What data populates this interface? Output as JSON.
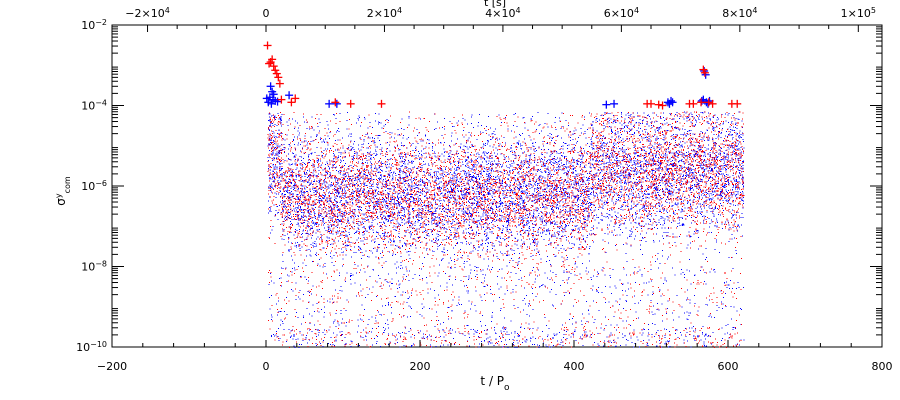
{
  "chart_data": {
    "type": "scatter",
    "title": "",
    "xlabel": "t / P",
    "xlabel_subscript": "o",
    "ylabel": "σ",
    "ylabel_superscript": "y",
    "ylabel_subscript": "com",
    "top_xlabel": "t [s]",
    "xlim": [
      -200,
      800
    ],
    "ylim": [
      1e-10,
      0.01
    ],
    "log_y": true,
    "grid": false,
    "legend": "none",
    "x_ticks": [
      -200,
      0,
      200,
      400,
      600,
      800
    ],
    "x_tick_labels": [
      "−200",
      "0",
      "200",
      "400",
      "600",
      "800"
    ],
    "y_ticks": [
      1e-10,
      1e-08,
      1e-06,
      0.0001,
      0.01
    ],
    "y_tick_labels": [
      "10−10",
      "10−8",
      "10−6",
      "10−4",
      "10−2"
    ],
    "top_x_ticks": [
      -20000,
      0,
      20000,
      40000,
      60000,
      80000,
      100000
    ],
    "top_x_tick_labels": [
      "−2×104",
      "0",
      "2×104",
      "4×104",
      "6×104",
      "8×104",
      "1×105"
    ],
    "series": [
      {
        "color": "#0000ff",
        "marker": "dot",
        "x_range": [
          0,
          620
        ],
        "y_range": [
          1e-10,
          0.0001
        ]
      },
      {
        "color": "#ff0000",
        "marker": "dot",
        "x_range": [
          0,
          620
        ],
        "y_range": [
          1e-10,
          0.0001
        ]
      },
      {
        "color": "#0000ff",
        "marker": "plus",
        "points": [
          [
            1,
            0.00015
          ],
          [
            3,
            0.00012
          ],
          [
            5,
            0.00016
          ],
          [
            7,
            0.00011
          ],
          [
            9,
            0.00014
          ],
          [
            6,
            0.0003
          ],
          [
            8,
            0.00022
          ],
          [
            10,
            0.00019
          ],
          [
            12,
            0.00013
          ],
          [
            15,
            0.000125
          ],
          [
            30,
            0.00018
          ],
          [
            82,
            0.00011
          ],
          [
            92,
            0.00011
          ],
          [
            442,
            0.000105
          ],
          [
            452,
            0.00011
          ],
          [
            522,
            0.00012
          ],
          [
            524,
            0.00011
          ],
          [
            526,
            0.00013
          ],
          [
            528,
            0.00012
          ],
          [
            566,
            0.00013
          ],
          [
            568,
            0.00014
          ],
          [
            572,
            0.00012
          ],
          [
            574,
            0.00011
          ],
          [
            576,
            0.00013
          ],
          [
            569,
            0.00072
          ],
          [
            571,
            0.00058
          ]
        ]
      },
      {
        "color": "#ff0000",
        "marker": "plus",
        "points": [
          [
            2,
            0.0031
          ],
          [
            4,
            0.0011
          ],
          [
            6,
            0.0012
          ],
          [
            8,
            0.0014
          ],
          [
            10,
            0.00095
          ],
          [
            12,
            0.00075
          ],
          [
            14,
            0.00062
          ],
          [
            16,
            0.0005
          ],
          [
            18,
            0.00035
          ],
          [
            20,
            0.00014
          ],
          [
            33,
            0.00012
          ],
          [
            38,
            0.00015
          ],
          [
            90,
            0.00012
          ],
          [
            110,
            0.00011
          ],
          [
            150,
            0.00011
          ],
          [
            495,
            0.00011
          ],
          [
            500,
            0.00011
          ],
          [
            510,
            0.000105
          ],
          [
            515,
            0.0001
          ],
          [
            550,
            0.00011
          ],
          [
            555,
            0.00011
          ],
          [
            565,
            0.00012
          ],
          [
            568,
            0.00078
          ],
          [
            570,
            0.00065
          ],
          [
            575,
            0.00012
          ],
          [
            580,
            0.00011
          ],
          [
            605,
            0.00011
          ],
          [
            612,
            0.00011
          ]
        ]
      }
    ]
  }
}
